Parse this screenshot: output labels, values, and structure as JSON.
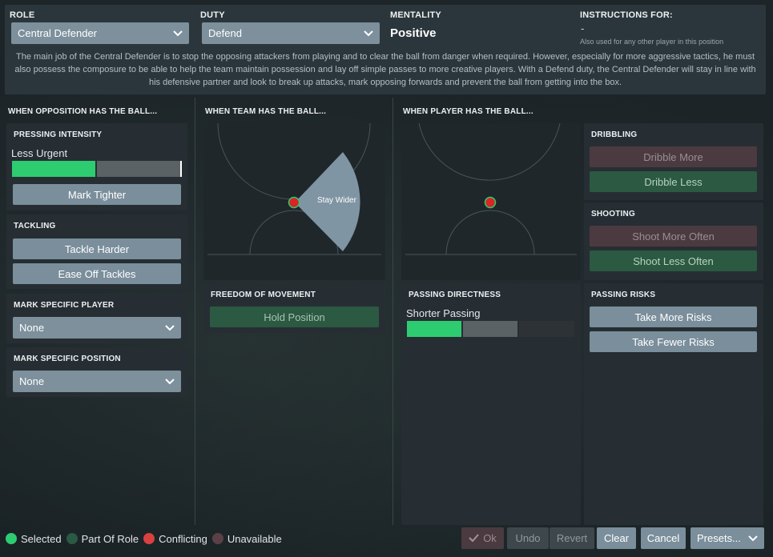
{
  "header": {
    "role_label": "ROLE",
    "role_value": "Central Defender",
    "duty_label": "DUTY",
    "duty_value": "Defend",
    "mentality_label": "MENTALITY",
    "mentality_value": "Positive",
    "instructions_label": "INSTRUCTIONS FOR:",
    "instructions_value": "-",
    "instructions_note": "Also used for any other player in this position",
    "description": "The main job of the Central Defender is to stop the opposing attackers from playing and to clear the ball from danger when required. However, especially for more aggressive tactics, he must also possess the composure to be able to help the team maintain possession and lay off simple passes to more creative players. With a Defend duty, the Central Defender will stay in line with his defensive partner and look to break up attacks, mark opposing forwards and prevent the ball from getting into the box."
  },
  "opposition": {
    "title": "WHEN OPPOSITION HAS THE BALL...",
    "pressing": {
      "title": "PRESSING INTENSITY",
      "value_label": "Less Urgent",
      "level": 0.5,
      "button": "Mark Tighter"
    },
    "tackling": {
      "title": "TACKLING",
      "buttons": [
        "Tackle Harder",
        "Ease Off Tackles"
      ]
    },
    "mark_player": {
      "title": "MARK SPECIFIC PLAYER",
      "value": "None"
    },
    "mark_position": {
      "title": "MARK SPECIFIC POSITION",
      "value": "None"
    }
  },
  "team": {
    "title": "WHEN TEAM HAS THE BALL...",
    "pitch_label": "Stay Wider",
    "freedom": {
      "title": "FREEDOM OF MOVEMENT",
      "button": "Hold Position"
    }
  },
  "player": {
    "title": "WHEN PLAYER HAS THE BALL...",
    "passing": {
      "title": "PASSING DIRECTNESS",
      "value_label": "Shorter Passing",
      "level": 0.33
    },
    "dribbling": {
      "title": "DRIBBLING",
      "buttons": [
        "Dribble More",
        "Dribble Less"
      ]
    },
    "shooting": {
      "title": "SHOOTING",
      "buttons": [
        "Shoot More Often",
        "Shoot Less Often"
      ]
    },
    "passing_risks": {
      "title": "PASSING RISKS",
      "buttons": [
        "Take More Risks",
        "Take Fewer Risks"
      ]
    }
  },
  "legend": {
    "selected": "Selected",
    "part_of_role": "Part Of Role",
    "conflicting": "Conflicting",
    "unavailable": "Unavailable"
  },
  "footer": {
    "ok": "Ok",
    "undo": "Undo",
    "revert": "Revert",
    "clear": "Clear",
    "cancel": "Cancel",
    "presets": "Presets..."
  },
  "colors": {
    "selected": "#2ecc71",
    "part_of_role": "#2b5942",
    "conflicting": "#d94040",
    "unavailable": "#5a4047",
    "button": "#7a8e9b"
  },
  "icons": [
    "chevron-down-icon",
    "check-icon",
    "player-position-marker"
  ]
}
